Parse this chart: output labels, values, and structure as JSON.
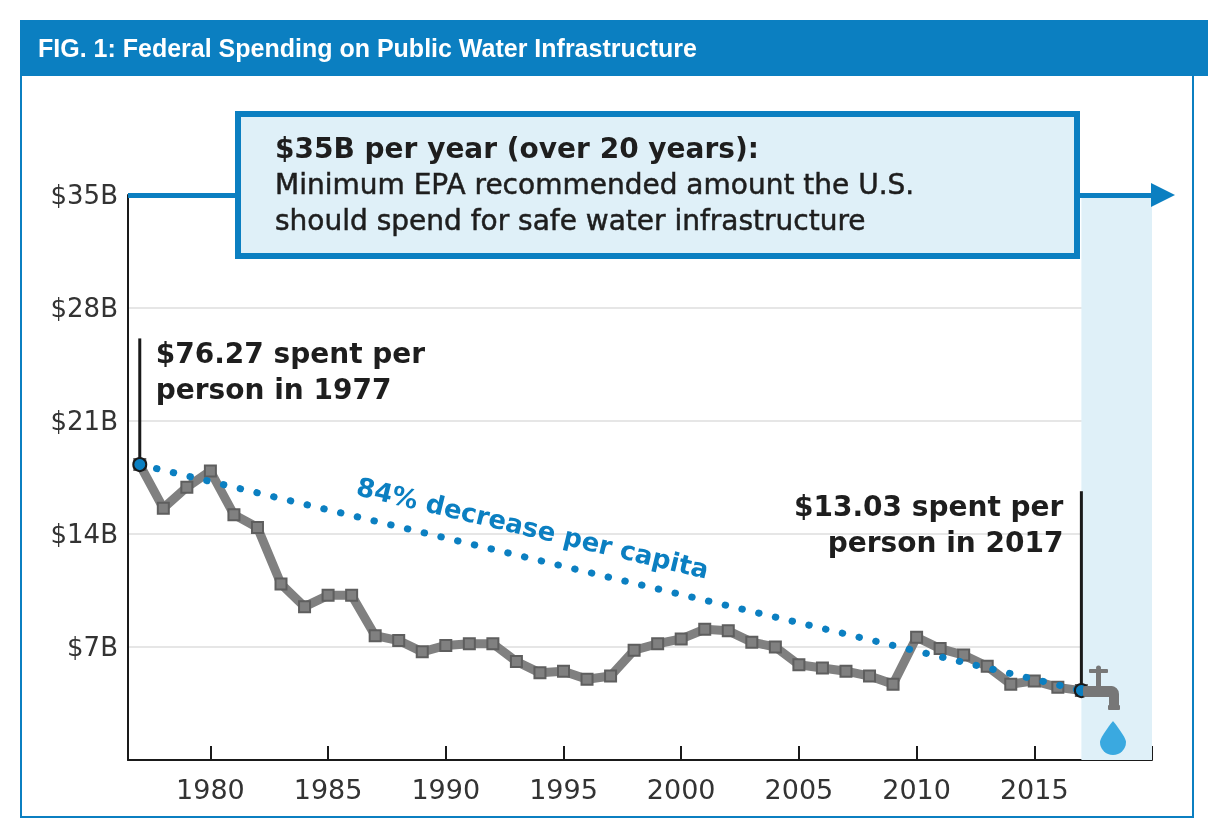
{
  "chart_data": {
    "type": "line",
    "title": "FIG. 1: Federal Spending on Public Water Infrastructure",
    "x": [
      1977,
      1978,
      1979,
      1980,
      1981,
      1982,
      1983,
      1984,
      1985,
      1986,
      1987,
      1988,
      1989,
      1990,
      1991,
      1992,
      1993,
      1994,
      1995,
      1996,
      1997,
      1998,
      1999,
      2000,
      2001,
      2002,
      2003,
      2004,
      2005,
      2006,
      2007,
      2008,
      2009,
      2010,
      2011,
      2012,
      2013,
      2014,
      2015,
      2016,
      2017
    ],
    "series": [
      {
        "color": "#808080",
        "values": [
          18.3,
          15.6,
          16.9,
          17.9,
          15.2,
          14.4,
          10.9,
          9.5,
          10.2,
          10.2,
          7.7,
          7.4,
          6.7,
          7.1,
          7.2,
          7.2,
          6.1,
          5.4,
          5.5,
          5.0,
          5.2,
          6.8,
          7.2,
          7.5,
          8.1,
          8.0,
          7.3,
          7.0,
          5.9,
          5.7,
          5.5,
          5.2,
          4.7,
          7.6,
          6.9,
          6.5,
          5.8,
          4.7,
          4.9,
          4.5,
          4.3
        ]
      },
      {
        "name": "84% decrease per capita",
        "color": "#0b7fc1",
        "x": [
          1977,
          2017
        ],
        "values": [
          18.3,
          4.3
        ],
        "line_style": "dotted",
        "marker": "circle"
      }
    ],
    "marker": "square",
    "line_style": "solid",
    "xlim": [
      1976.5,
      2020
    ],
    "xticks": [
      1980,
      1985,
      1990,
      1995,
      2000,
      2005,
      2010,
      2015,
      {
        "value": 2020,
        "label": null
      }
    ],
    "ylim": [
      0,
      35
    ],
    "yticks": [
      {
        "value": 7,
        "label": "$7B"
      },
      {
        "value": 14,
        "label": "$14B"
      },
      {
        "value": 21,
        "label": "$21B"
      },
      {
        "value": 28,
        "label": "$28B"
      },
      {
        "value": 35,
        "label": "$35B"
      }
    ],
    "grid": "y",
    "ref_lines": [
      {
        "axis": "y",
        "value": 35,
        "label": "$35B per year (over 20 years): Minimum EPA recommended amount the U.S. should spend for safe water infrastructure",
        "color": "#0b7fc1"
      }
    ],
    "bands": [
      {
        "axis": "x",
        "from": 2017,
        "to": 2020,
        "color": "#dff0f8"
      }
    ],
    "annotations": [
      {
        "text": "$76.27 spent per person in 1977",
        "x": 1977,
        "y": 18.3
      },
      {
        "text": "$13.03 spent per person in 2017",
        "x": 2017,
        "y": 4.3
      }
    ]
  }
}
